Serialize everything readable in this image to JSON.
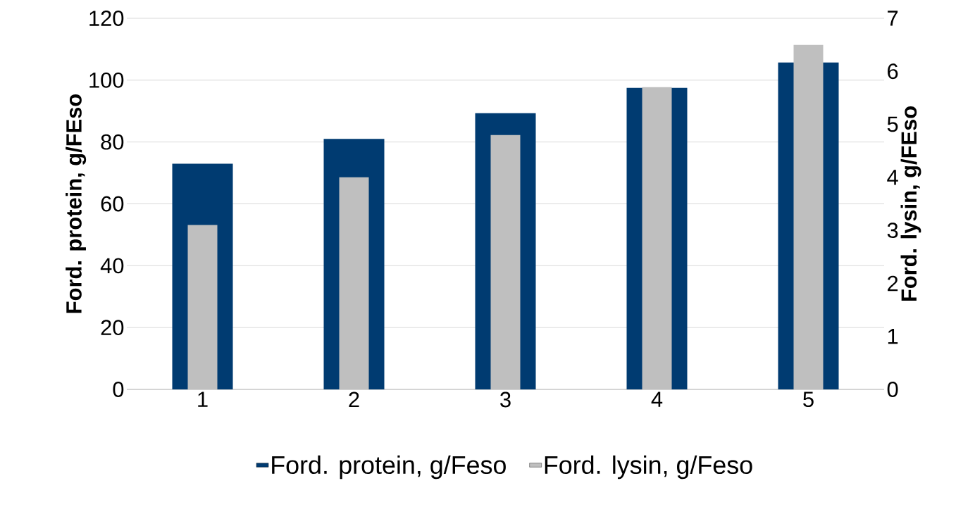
{
  "chart_data": {
    "type": "bar",
    "categories": [
      "1",
      "2",
      "3",
      "4",
      "5"
    ],
    "series": [
      {
        "name": "Ford. protein, g/Feso",
        "color": "#003b71",
        "values": [
          73,
          81,
          89.3,
          97.5,
          105.7
        ]
      },
      {
        "name": "Ford. lysin, g/Feso",
        "color": "#bfbfbf",
        "values": [
          3.1,
          4.0,
          4.8,
          5.7,
          6.5
        ],
        "axis": "y2"
      }
    ],
    "ylabel": "Ford. protein, g/FEso",
    "y2label": "Ford. lysin, g/FEso",
    "ylim": [
      0,
      120
    ],
    "yticks": [
      0,
      20,
      40,
      60,
      80,
      100,
      120
    ],
    "y2lim": [
      0,
      7
    ],
    "y2ticks": [
      0,
      1,
      2,
      3,
      4,
      5,
      6,
      7
    ],
    "grid": "y",
    "legend": "bottom"
  }
}
